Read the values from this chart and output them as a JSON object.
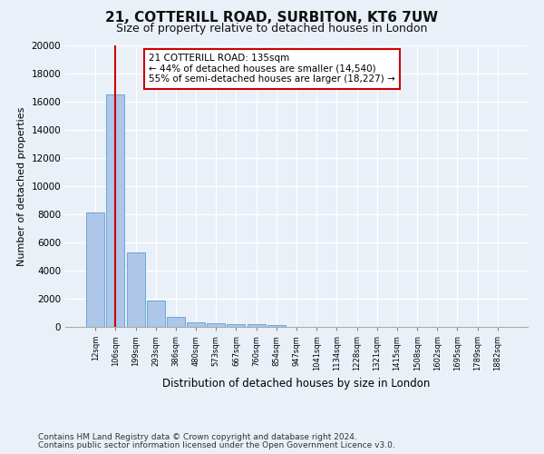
{
  "title1": "21, COTTERILL ROAD, SURBITON, KT6 7UW",
  "title2": "Size of property relative to detached houses in London",
  "xlabel": "Distribution of detached houses by size in London",
  "ylabel": "Number of detached properties",
  "categories": [
    "12sqm",
    "106sqm",
    "199sqm",
    "293sqm",
    "386sqm",
    "480sqm",
    "573sqm",
    "667sqm",
    "760sqm",
    "854sqm",
    "947sqm",
    "1041sqm",
    "1134sqm",
    "1228sqm",
    "1321sqm",
    "1415sqm",
    "1508sqm",
    "1602sqm",
    "1695sqm",
    "1789sqm",
    "1882sqm"
  ],
  "values": [
    8100,
    16500,
    5300,
    1850,
    700,
    350,
    270,
    200,
    165,
    130,
    0,
    0,
    0,
    0,
    0,
    0,
    0,
    0,
    0,
    0,
    0
  ],
  "bar_color": "#aec6e8",
  "bar_edgecolor": "#5a9fd4",
  "vline_x_index": 1,
  "vline_color": "#cc0000",
  "annotation_text": "21 COTTERILL ROAD: 135sqm\n← 44% of detached houses are smaller (14,540)\n55% of semi-detached houses are larger (18,227) →",
  "annotation_box_color": "#cc0000",
  "ylim": [
    0,
    20000
  ],
  "yticks": [
    0,
    2000,
    4000,
    6000,
    8000,
    10000,
    12000,
    14000,
    16000,
    18000,
    20000
  ],
  "footnote1": "Contains HM Land Registry data © Crown copyright and database right 2024.",
  "footnote2": "Contains public sector information licensed under the Open Government Licence v3.0.",
  "bg_color": "#eaf0f8",
  "plot_bg_color": "#eaf0f8",
  "grid_color": "#ffffff",
  "title1_fontsize": 11,
  "title2_fontsize": 9,
  "annotation_fontsize": 7.5,
  "footnote_fontsize": 6.5,
  "ylabel_fontsize": 8,
  "xlabel_fontsize": 8.5
}
